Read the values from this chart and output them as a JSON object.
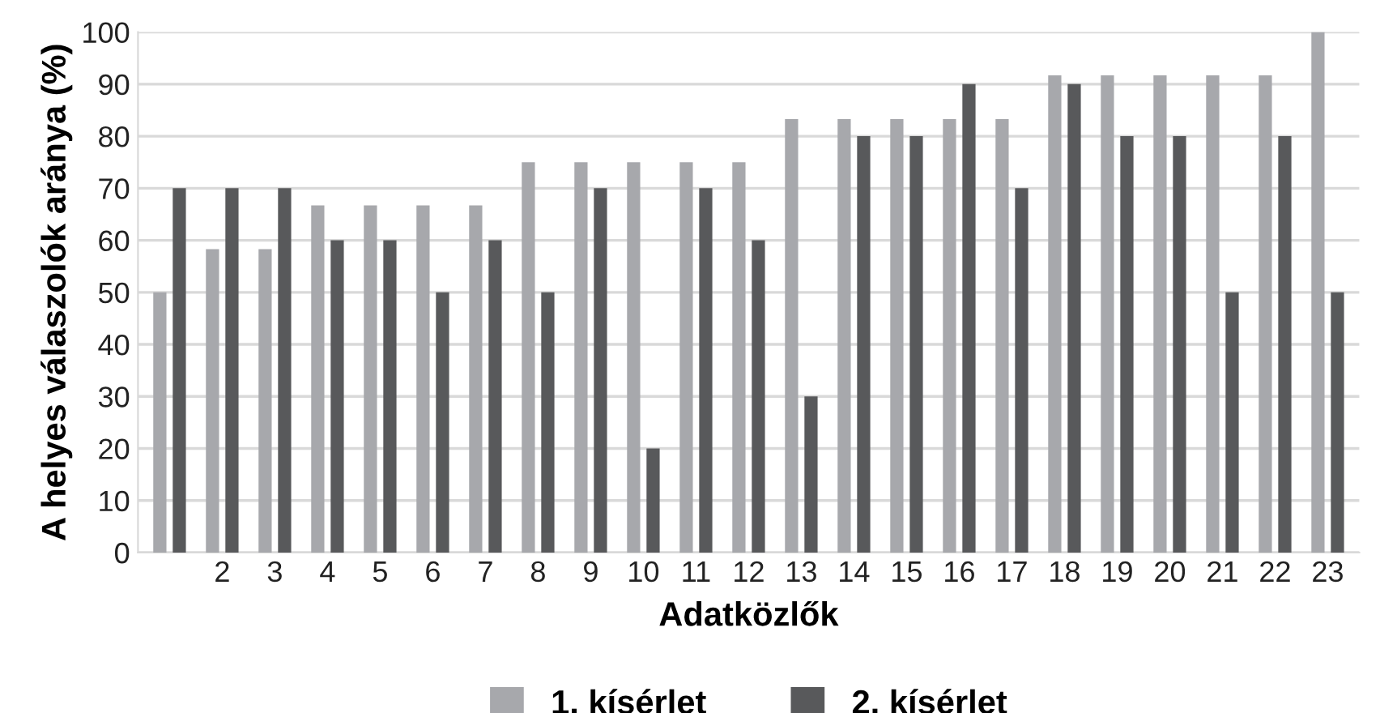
{
  "chart_data": {
    "type": "bar",
    "xlabel": "Adatközlők",
    "ylabel": "A helyes válaszolók aránya (%)",
    "categories": [
      null,
      "2",
      "3",
      "4",
      "5",
      "6",
      "7",
      "8",
      "9",
      "10",
      "11",
      "12",
      "13",
      "14",
      "15",
      "16",
      "17",
      "18",
      "19",
      "20",
      "21",
      "22",
      "23"
    ],
    "series": [
      {
        "name": "1. kísérlet",
        "color": "#a7a8ac",
        "values": [
          50,
          58.3,
          58.3,
          66.7,
          66.7,
          66.7,
          66.7,
          75,
          75,
          75,
          75,
          75,
          83.3,
          83.3,
          83.3,
          83.3,
          83.3,
          91.7,
          91.7,
          91.7,
          91.7,
          91.7,
          100
        ]
      },
      {
        "name": "2. kísérlet",
        "color": "#58595b",
        "values": [
          70,
          70,
          70,
          60,
          60,
          50,
          60,
          50,
          70,
          20,
          70,
          60,
          30,
          80,
          80,
          90,
          70,
          90,
          80,
          80,
          50,
          80,
          50
        ]
      }
    ],
    "ylim": [
      0,
      100
    ],
    "yticks": [
      0,
      10,
      20,
      30,
      40,
      50,
      60,
      70,
      80,
      90,
      100
    ],
    "grid": "y",
    "legend": "bottom"
  }
}
